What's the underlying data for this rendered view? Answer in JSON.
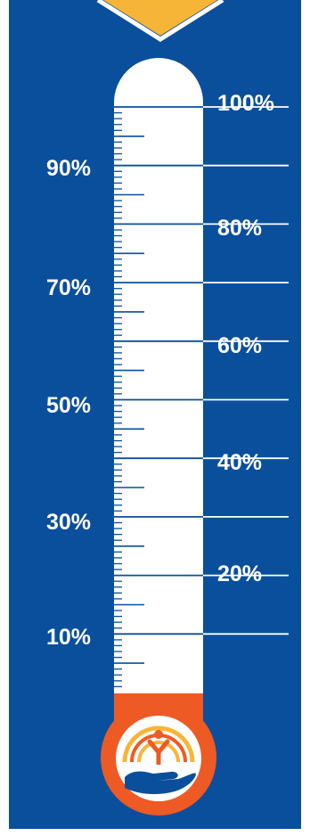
{
  "thermometer": {
    "left_labels": [
      "90%",
      "70%",
      "50%",
      "30%",
      "10%"
    ],
    "right_labels": [
      "100%",
      "80%",
      "60%",
      "40%",
      "20%"
    ],
    "fill_percent": 0
  },
  "colors": {
    "panel_blue": "#0a4f9c",
    "tube_white": "#ffffff",
    "bulb_orange": "#ee5a24",
    "pointer_yellow": "#f7b538",
    "tick_blue": "#0a4f9c",
    "logo_blue": "#0a4f9c",
    "logo_orange": "#ee5a24",
    "logo_yellow": "#f7b538"
  },
  "icons": {
    "pointer": "triangle-pointer-icon",
    "logo": "hand-and-person-logo-icon"
  }
}
